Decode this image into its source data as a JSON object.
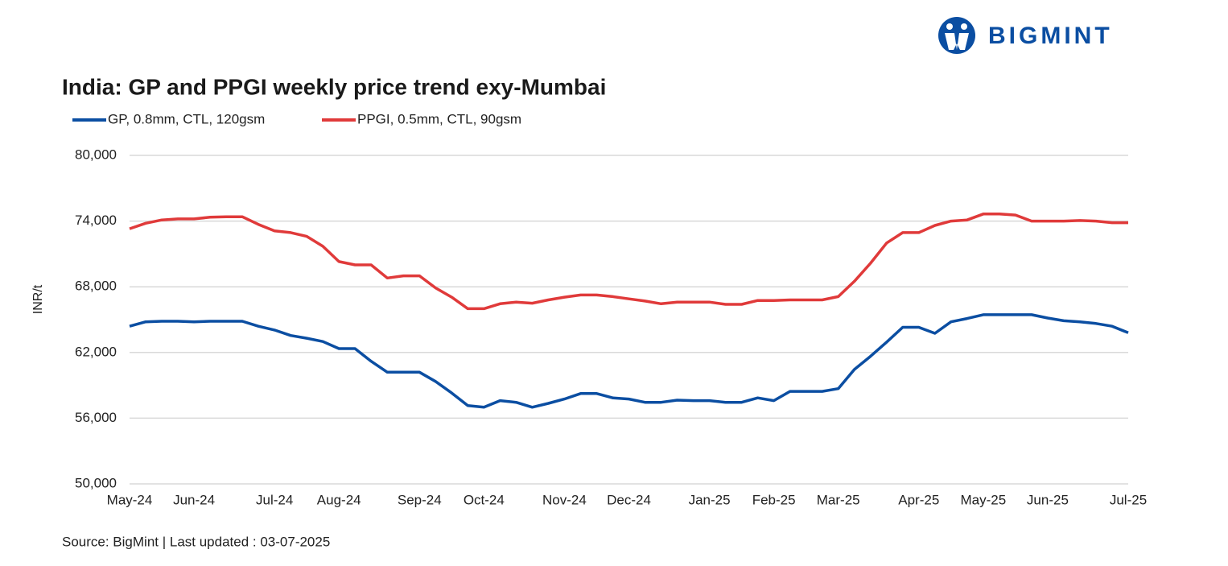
{
  "brand": "BIGMINT",
  "chart_data": {
    "type": "line",
    "title": "India: GP and PPGI weekly price trend exy-Mumbai",
    "y_label": "INR/t",
    "source": "Source: BigMint | Last updated : 03-07-2025",
    "categories": [
      "May-24",
      null,
      null,
      null,
      "Jun-24",
      null,
      null,
      null,
      null,
      "Jul-24",
      null,
      null,
      null,
      "Aug-24",
      null,
      null,
      null,
      null,
      "Sep-24",
      null,
      null,
      null,
      "Oct-24",
      null,
      null,
      null,
      null,
      "Nov-24",
      null,
      null,
      null,
      "Dec-24",
      null,
      null,
      null,
      null,
      "Jan-25",
      null,
      null,
      null,
      "Feb-25",
      null,
      null,
      null,
      "Mar-25",
      null,
      null,
      null,
      null,
      "Apr-25",
      null,
      null,
      null,
      "May-25",
      null,
      null,
      null,
      "Jun-25",
      null,
      null,
      null,
      null,
      "Jul-25"
    ],
    "series": [
      {
        "name": "GP, 0.8mm, CTL, 120gsm",
        "color": "#0b4ea2",
        "values": [
          64400,
          64800,
          64850,
          64850,
          64800,
          64850,
          64850,
          64850,
          64400,
          64050,
          63550,
          63300,
          63000,
          62350,
          62350,
          61200,
          60200,
          60200,
          60200,
          59350,
          58300,
          57150,
          57000,
          57600,
          57450,
          57000,
          57350,
          57750,
          58250,
          58250,
          57850,
          57750,
          57450,
          57450,
          57650,
          57600,
          57600,
          57450,
          57450,
          57850,
          57600,
          58450,
          58450,
          58450,
          58700,
          60450,
          61650,
          62950,
          64300,
          64300,
          63750,
          64800,
          65100,
          65450,
          65450,
          65450,
          65450,
          65150,
          64900,
          64800,
          64650,
          64400,
          63800
        ]
      },
      {
        "name": "PPGI, 0.5mm, CTL, 90gsm",
        "color": "#e03a3a",
        "values": [
          73300,
          73800,
          74100,
          74200,
          74200,
          74350,
          74400,
          74400,
          73700,
          73100,
          72950,
          72600,
          71700,
          70300,
          70000,
          70000,
          68800,
          69000,
          69000,
          67900,
          67050,
          66000,
          66000,
          66450,
          66600,
          66500,
          66800,
          67050,
          67250,
          67250,
          67100,
          66900,
          66700,
          66450,
          66600,
          66600,
          66600,
          66400,
          66400,
          66750,
          66750,
          66800,
          66800,
          66800,
          67100,
          68500,
          70150,
          72000,
          72950,
          72950,
          73600,
          74000,
          74100,
          74650,
          74650,
          74550,
          74000,
          74000,
          74000,
          74050,
          74000,
          73850,
          73850
        ]
      }
    ],
    "ylim": [
      50000,
      80000
    ],
    "yticks": [
      {
        "value": 50000,
        "label": "50,000"
      },
      {
        "value": 56000,
        "label": "56,000"
      },
      {
        "value": 62000,
        "label": "62,000"
      },
      {
        "value": 68000,
        "label": "68,000"
      },
      {
        "value": 74000,
        "label": "74,000"
      },
      {
        "value": 80000,
        "label": "80,000"
      }
    ],
    "grid": true
  }
}
